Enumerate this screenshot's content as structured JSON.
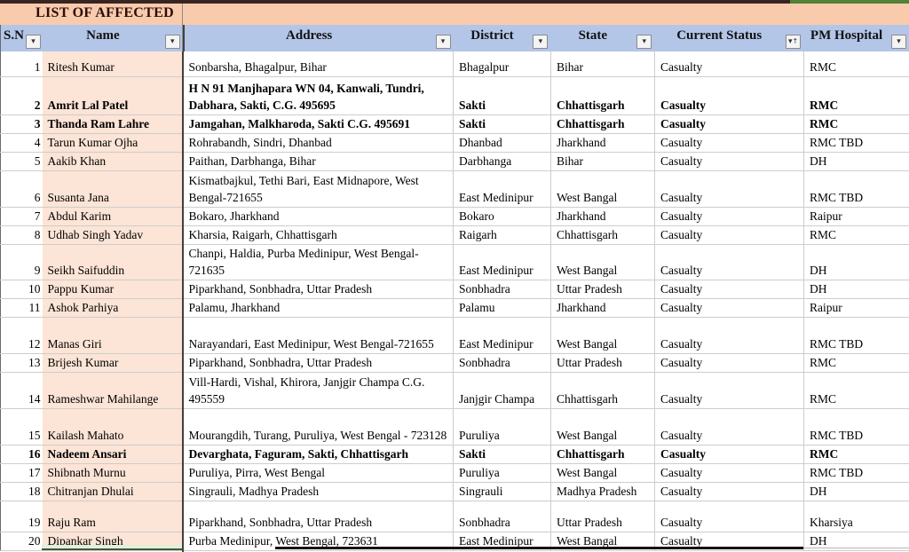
{
  "title": "LIST OF AFFECTED",
  "columns": [
    {
      "key": "sn",
      "label": "S.N",
      "filter": "dropdown"
    },
    {
      "key": "name",
      "label": "Name",
      "filter": "dropdown"
    },
    {
      "key": "address",
      "label": "Address",
      "filter": "dropdown"
    },
    {
      "key": "district",
      "label": "District",
      "filter": "dropdown"
    },
    {
      "key": "state",
      "label": "State",
      "filter": "dropdown"
    },
    {
      "key": "status",
      "label": "Current Status",
      "filter": "sort-dropdown"
    },
    {
      "key": "hospital",
      "label": "PM Hospital",
      "filter": "dropdown"
    }
  ],
  "rows": [
    {
      "sn": "1",
      "name": "Ritesh Kumar",
      "address": "Sonbarsha, Bhagalpur, Bihar",
      "district": "Bhagalpur",
      "state": "Bihar",
      "status": "Casualty",
      "hospital": "RMC",
      "bold": false
    },
    {
      "sn": "2",
      "name": "Amrit Lal Patel",
      "address": "H N 91 Manjhapara WN 04, Kanwali, Tundri, Dabhara, Sakti, C.G. 495695",
      "district": "Sakti",
      "state": "Chhattisgarh",
      "status": "Casualty",
      "hospital": "RMC",
      "bold": true
    },
    {
      "sn": "3",
      "name": "Thanda Ram Lahre",
      "address": "Jamgahan, Malkharoda, Sakti C.G. 495691",
      "district": "Sakti",
      "state": "Chhattisgarh",
      "status": "Casualty",
      "hospital": "RMC",
      "bold": true
    },
    {
      "sn": "4",
      "name": "Tarun Kumar Ojha",
      "address": "Rohrabandh, Sindri, Dhanbad",
      "district": "Dhanbad",
      "state": "Jharkhand",
      "status": "Casualty",
      "hospital": "RMC TBD",
      "bold": false
    },
    {
      "sn": "5",
      "name": "Aakib Khan",
      "address": "Paithan, Darbhanga, Bihar",
      "district": "Darbhanga",
      "state": "Bihar",
      "status": "Casualty",
      "hospital": "DH",
      "bold": false
    },
    {
      "sn": "6",
      "name": "Susanta Jana",
      "address": "Kismatbajkul, Tethi Bari, East Midnapore, West Bengal-721655",
      "district": "East Medinipur",
      "state": "West Bangal",
      "status": "Casualty",
      "hospital": "RMC TBD",
      "bold": false
    },
    {
      "sn": "7",
      "name": "Abdul Karim",
      "address": "Bokaro, Jharkhand",
      "district": "Bokaro",
      "state": "Jharkhand",
      "status": "Casualty",
      "hospital": "Raipur",
      "bold": false
    },
    {
      "sn": "8",
      "name": "Udhab Singh Yadav",
      "address": "Kharsia, Raigarh, Chhattisgarh",
      "district": "Raigarh",
      "state": "Chhattisgarh",
      "status": "Casualty",
      "hospital": "RMC",
      "bold": false
    },
    {
      "sn": "9",
      "name": "Seikh Saifuddin",
      "address": "Chanpi, Haldia, Purba Medinipur, West Bengal-721635",
      "district": "East Medinipur",
      "state": "West Bangal",
      "status": "Casualty",
      "hospital": "DH",
      "bold": false
    },
    {
      "sn": "10",
      "name": "Pappu Kumar",
      "address": "Piparkhand, Sonbhadra, Uttar Pradesh",
      "district": "Sonbhadra",
      "state": "Uttar Pradesh",
      "status": "Casualty",
      "hospital": "DH",
      "bold": false
    },
    {
      "sn": "11",
      "name": "Ashok Parhiya",
      "address": "Palamu, Jharkhand",
      "district": "Palamu",
      "state": "Jharkhand",
      "status": "Casualty",
      "hospital": "Raipur",
      "bold": false
    },
    {
      "sn": "12",
      "name": "Manas Giri",
      "address": "Narayandari, East Medinipur, West Bengal-721655",
      "district": "East Medinipur",
      "state": "West Bangal",
      "status": "Casualty",
      "hospital": "RMC TBD",
      "bold": false
    },
    {
      "sn": "13",
      "name": "Brijesh Kumar",
      "address": "Piparkhand, Sonbhadra, Uttar Pradesh",
      "district": "Sonbhadra",
      "state": "Uttar Pradesh",
      "status": "Casualty",
      "hospital": "RMC",
      "bold": false
    },
    {
      "sn": "14",
      "name": "Rameshwar Mahilange",
      "address": "Vill-Hardi, Vishal, Khirora, Janjgir Champa C.G. 495559",
      "district": "Janjgir Champa",
      "state": "Chhattisgarh",
      "status": "Casualty",
      "hospital": "RMC",
      "bold": false
    },
    {
      "sn": "15",
      "name": "Kailash Mahato",
      "address": "Mourangdih, Turang, Puruliya, West Bengal - 723128",
      "district": "Puruliya",
      "state": "West Bangal",
      "status": "Casualty",
      "hospital": "RMC TBD",
      "bold": false
    },
    {
      "sn": "16",
      "name": "Nadeem Ansari",
      "address": "Devarghata, Faguram, Sakti, Chhattisgarh",
      "district": "Sakti",
      "state": "Chhattisgarh",
      "status": "Casualty",
      "hospital": "RMC",
      "bold": true
    },
    {
      "sn": "17",
      "name": "Shibnath Murnu",
      "address": "Puruliya, Pirra, West Bengal",
      "district": "Puruliya",
      "state": "West Bangal",
      "status": "Casualty",
      "hospital": "RMC TBD",
      "bold": false
    },
    {
      "sn": "18",
      "name": "Chitranjan Dhulai",
      "address": "Singrauli, Madhya Pradesh",
      "district": "Singrauli",
      "state": "Madhya Pradesh",
      "status": "Casualty",
      "hospital": "DH",
      "bold": false
    },
    {
      "sn": "19",
      "name": "Raju Ram",
      "address": "Piparkhand, Sonbhadra, Uttar Pradesh",
      "district": "Sonbhadra",
      "state": "Uttar Pradesh",
      "status": "Casualty",
      "hospital": "Kharsiya",
      "bold": false
    },
    {
      "sn": "20",
      "name": "Dipankar Singh",
      "address": "Purba Medinipur, West Bengal, 723631",
      "district": "East Medinipur",
      "state": "West Bangal",
      "status": "Casualty",
      "hospital": "DH",
      "bold": false
    }
  ],
  "colors": {
    "title_band": "#f8cbad",
    "header_band": "#b4c6e7",
    "name_column": "#fce4d6",
    "top_strip_maroon": "#3a2421",
    "top_strip_green": "#538135",
    "bottom_cell_green": "#e2efda"
  }
}
